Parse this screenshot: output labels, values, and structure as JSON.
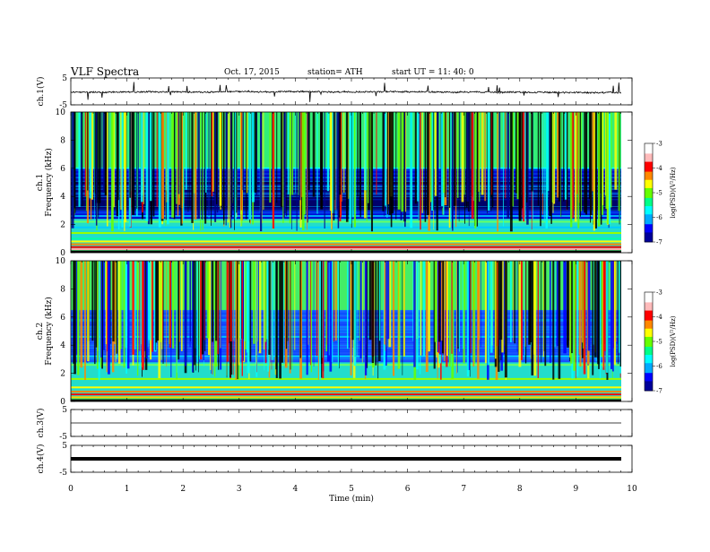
{
  "header": {
    "title": "VLF  Spectra",
    "date": "Oct. 17, 2015",
    "station": "station= ATH",
    "start": "start  UT  =   11: 40: 0"
  },
  "chart_data": [
    {
      "type": "line",
      "panel": "ch1_waveform",
      "ylabel": "ch.1(V)",
      "ylim": [
        -5,
        5
      ],
      "yticks": [
        "5",
        "-5"
      ],
      "xlim": [
        0,
        10
      ],
      "series": [
        {
          "values_description": "",
          "approx_level": -0.2,
          "approx_amplitude": 0.6
        }
      ]
    },
    {
      "type": "heatmap",
      "panel": "ch1_spectrogram",
      "ylabel": "ch.1\nFrequency (kHz)",
      "ylim": [
        0,
        10
      ],
      "yticks": [
        "0",
        "2",
        "4",
        "6",
        "8",
        "10"
      ],
      "xlim": [
        0,
        10
      ],
      "colorbar": {
        "label": "log(PSD)(V²/Hz)",
        "range": [
          -7,
          -3
        ],
        "ticks": [
          "-3",
          "-4",
          "-5",
          "-6",
          "-7"
        ]
      }
    },
    {
      "type": "heatmap",
      "panel": "ch2_spectrogram",
      "ylabel": "ch.2\nFrequency (kHz)",
      "ylim": [
        0,
        10
      ],
      "yticks": [
        "0",
        "2",
        "4",
        "6",
        "8",
        "10"
      ],
      "xlim": [
        0,
        10
      ],
      "colorbar": {
        "label": "log(PSD)(V²/Hz)",
        "range": [
          -7,
          -3
        ],
        "ticks": [
          "-3",
          "-4",
          "-5",
          "-6",
          "-7"
        ]
      }
    },
    {
      "type": "line",
      "panel": "ch3_waveform",
      "ylabel": "ch.3(V)",
      "ylim": [
        -5,
        5
      ],
      "yticks": [
        "5",
        "-5"
      ],
      "xlim": [
        0,
        10
      ],
      "series": [
        {
          "approx_level": 0.0
        }
      ]
    },
    {
      "type": "line",
      "panel": "ch4_waveform",
      "ylabel": "ch.4(V)",
      "ylim": [
        -5,
        5
      ],
      "yticks": [
        "5",
        "-5"
      ],
      "xlim": [
        0,
        10
      ],
      "series": [
        {
          "approx_level": 0.0
        }
      ]
    }
  ],
  "xaxis": {
    "label": "Time  (min)",
    "ticks": [
      "0",
      "1",
      "2",
      "3",
      "4",
      "5",
      "6",
      "7",
      "8",
      "9",
      "10"
    ]
  },
  "colors": {
    "colormap": [
      "#00009a",
      "#0000ff",
      "#00aaff",
      "#00ffff",
      "#00ff88",
      "#66ff00",
      "#ffff00",
      "#ff8800",
      "#ff0000",
      "#ffbbbb",
      "#ffffff"
    ],
    "trace": "#000000"
  }
}
